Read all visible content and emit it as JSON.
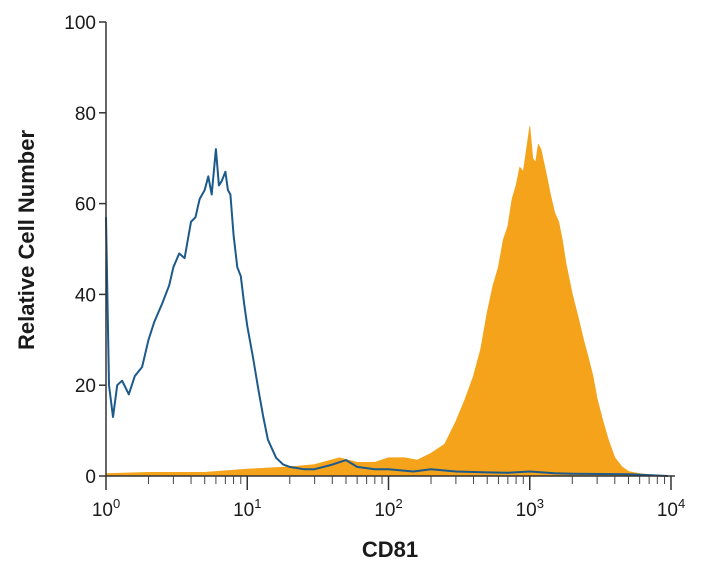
{
  "chart_data": {
    "type": "area",
    "xlabel": "CD81",
    "ylabel": "Relative Cell Number",
    "x_scale": "log",
    "xlim": [
      1,
      10000
    ],
    "ylim": [
      0,
      100
    ],
    "x_ticks": [
      {
        "base": "10",
        "exp": "0"
      },
      {
        "base": "10",
        "exp": "1"
      },
      {
        "base": "10",
        "exp": "2"
      },
      {
        "base": "10",
        "exp": "3"
      },
      {
        "base": "10",
        "exp": "4"
      }
    ],
    "y_ticks": [
      "0",
      "20",
      "40",
      "60",
      "80",
      "100"
    ],
    "grid": false,
    "legend": "none",
    "series": [
      {
        "style": "outline",
        "color": "#1c5a8c",
        "x": [
          1.0,
          1.05,
          1.12,
          1.2,
          1.3,
          1.45,
          1.6,
          1.8,
          2.0,
          2.2,
          2.5,
          2.8,
          3.0,
          3.3,
          3.6,
          4.0,
          4.3,
          4.6,
          5.0,
          5.3,
          5.6,
          6.0,
          6.3,
          6.6,
          7.0,
          7.3,
          7.6,
          8.0,
          8.5,
          9.0,
          9.5,
          10.0,
          11,
          12,
          13,
          14,
          16,
          18,
          20,
          25,
          30,
          40,
          50,
          60,
          80,
          100,
          150,
          200,
          300,
          500,
          700,
          1000,
          1500,
          2000,
          5000,
          9500
        ],
        "y": [
          57,
          20,
          13,
          20,
          21,
          18,
          22,
          24,
          30,
          34,
          38,
          42,
          46,
          49,
          48,
          56,
          57,
          61,
          63,
          66,
          62,
          72,
          64,
          65,
          67,
          63,
          62,
          53,
          46,
          44,
          38,
          33,
          26,
          19,
          13,
          8,
          4,
          2.5,
          2,
          1.5,
          1.5,
          2.5,
          3.5,
          2,
          1.5,
          1.5,
          1,
          1.5,
          1,
          0.8,
          0.7,
          1,
          0.6,
          0.5,
          0.4,
          0
        ]
      },
      {
        "style": "filled",
        "color": "#f5a31a",
        "x": [
          1.0,
          2,
          5,
          10,
          20,
          30,
          45,
          60,
          80,
          100,
          130,
          160,
          200,
          250,
          300,
          350,
          400,
          450,
          500,
          550,
          600,
          650,
          700,
          750,
          800,
          850,
          900,
          950,
          1000,
          1050,
          1100,
          1150,
          1200,
          1300,
          1400,
          1500,
          1600,
          1700,
          1800,
          2000,
          2200,
          2400,
          2600,
          2800,
          3000,
          3300,
          3600,
          4000,
          4500,
          5000,
          6000,
          7000,
          8000,
          9500
        ],
        "y": [
          0.5,
          0.8,
          0.8,
          1.5,
          2,
          2.5,
          4,
          3,
          3,
          4,
          4,
          3.5,
          5,
          7,
          12,
          17,
          22,
          28,
          36,
          42,
          46,
          52,
          55,
          61,
          64,
          68,
          67,
          72,
          77,
          70,
          69,
          73,
          72,
          67,
          62,
          58,
          56,
          52,
          47,
          40,
          35,
          30,
          26,
          22,
          17,
          12,
          8,
          4,
          2,
          1,
          0.5,
          0.3,
          0.2,
          0
        ]
      }
    ]
  }
}
